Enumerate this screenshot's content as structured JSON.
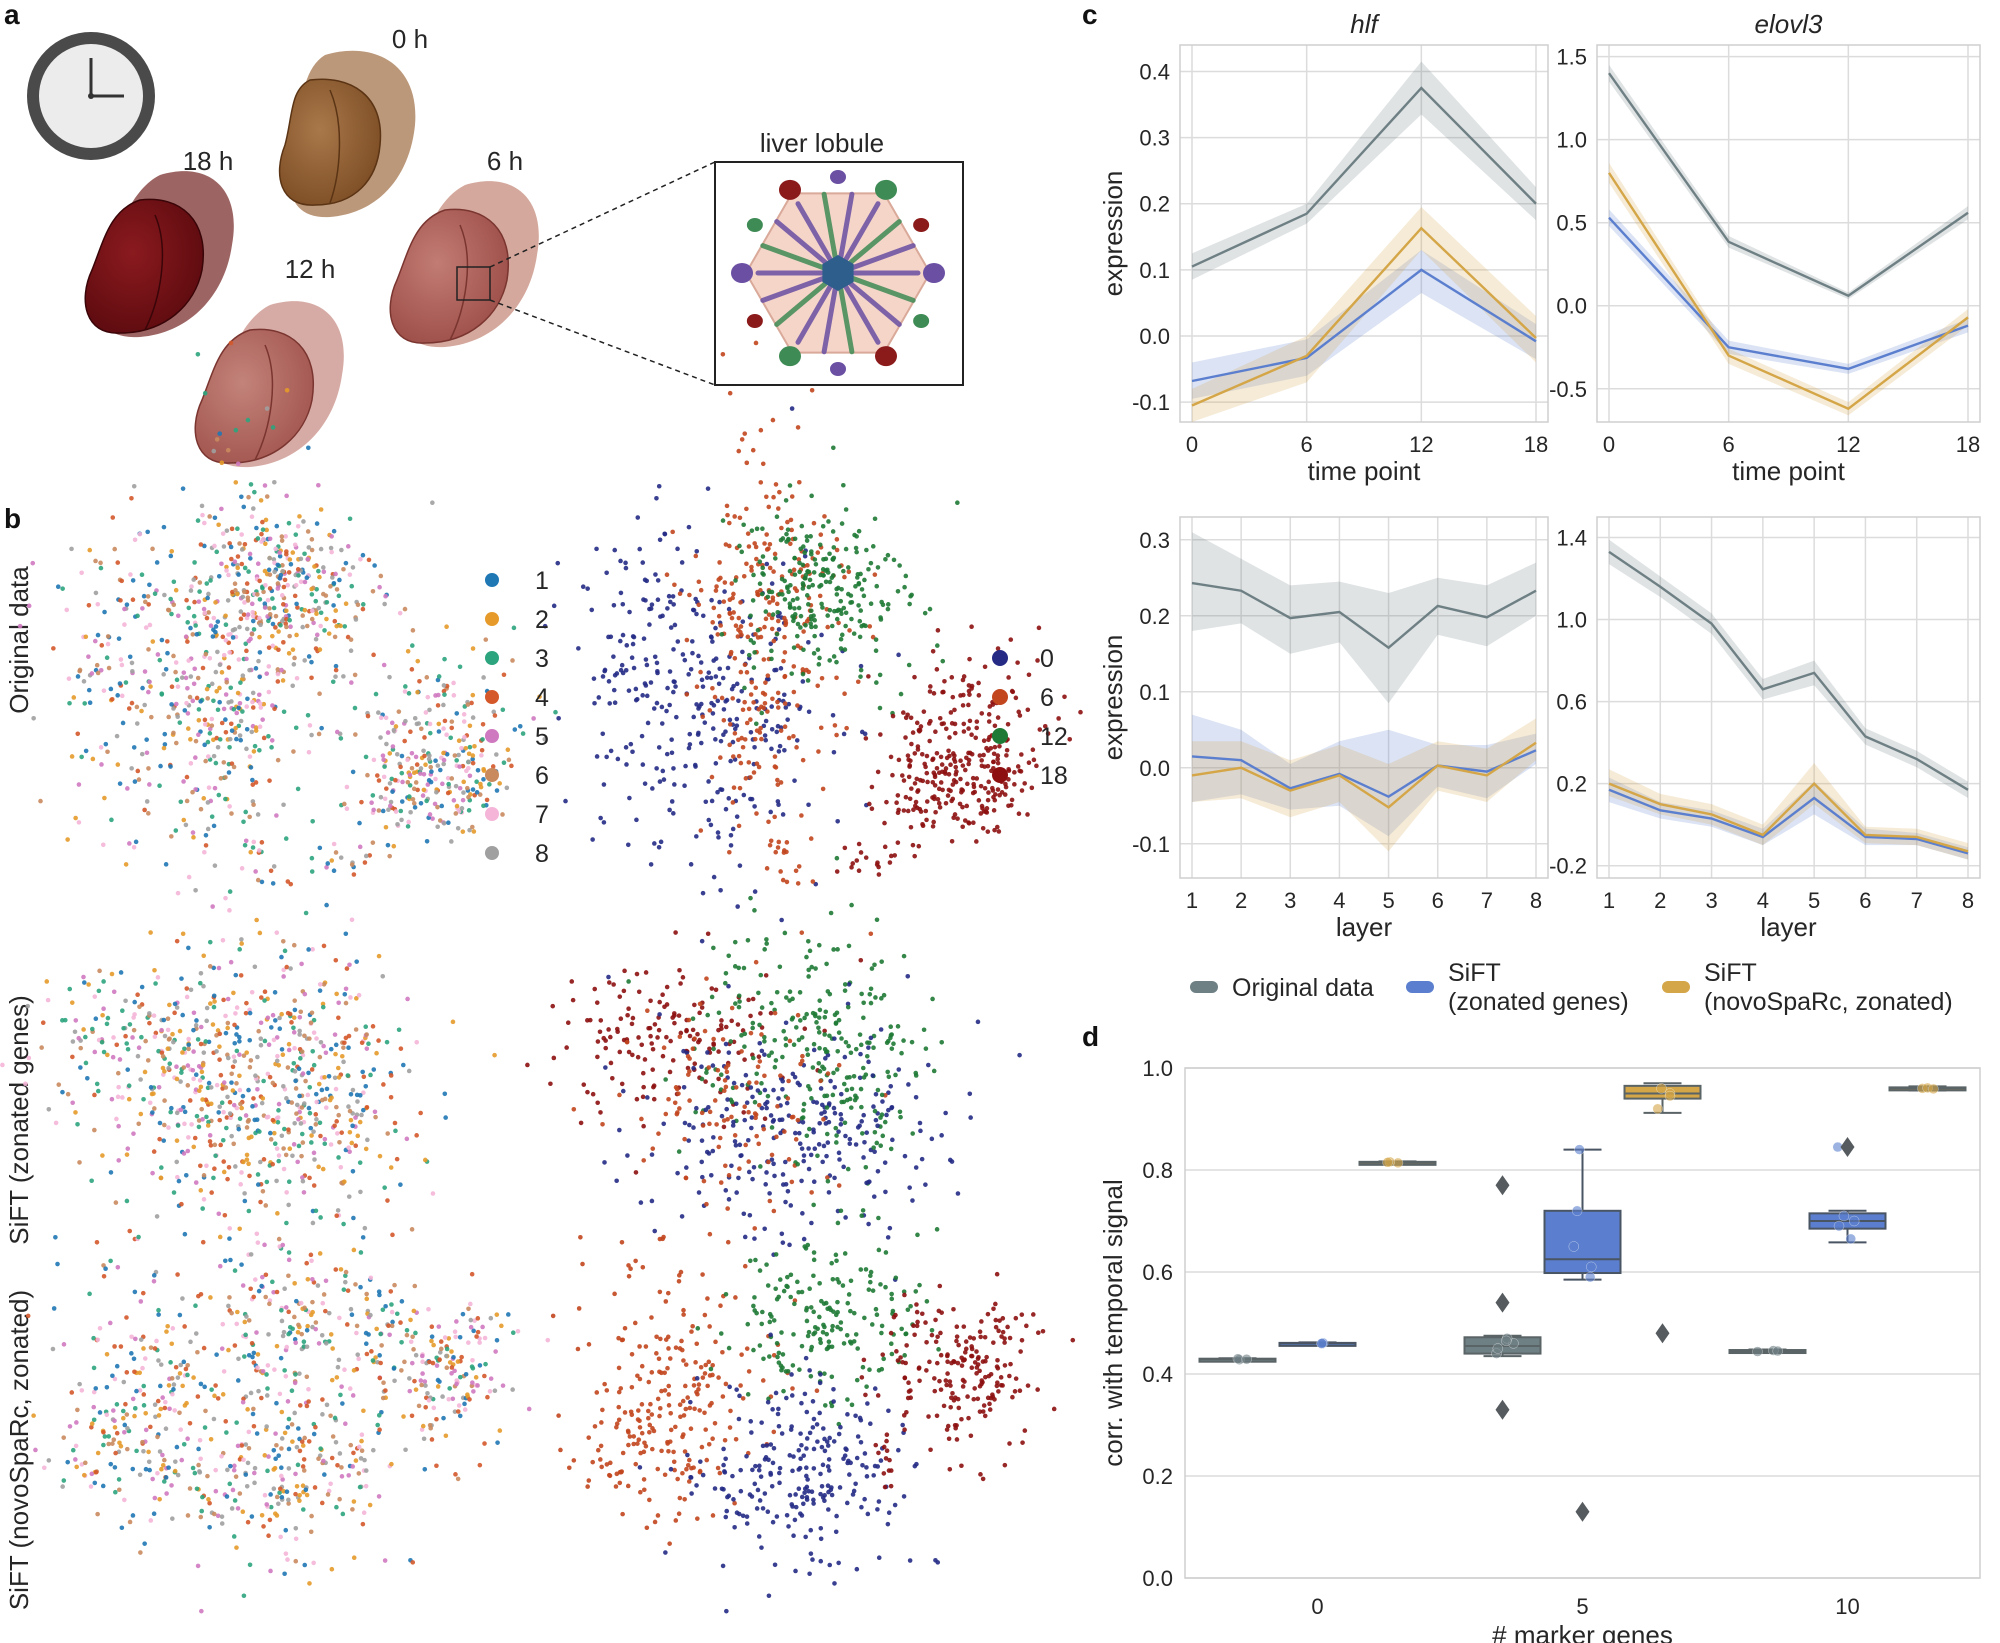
{
  "panel_labels": {
    "a": "a",
    "b": "b",
    "c": "c",
    "d": "d"
  },
  "panel_a": {
    "timepoints": [
      "0 h",
      "6 h",
      "12 h",
      "18 h"
    ],
    "inset_title": "liver lobule"
  },
  "panel_b": {
    "row_labels": [
      "Original data",
      "SiFT (zonated genes)",
      "SiFT (novoSpaRc, zonated)"
    ],
    "layer_legend": {
      "labels": [
        "1",
        "2",
        "3",
        "4",
        "5",
        "6",
        "7",
        "8"
      ],
      "colors": [
        "#1f77b4",
        "#e69a2a",
        "#2ca47d",
        "#d4582a",
        "#cf79c0",
        "#c98a5e",
        "#f4b5d8",
        "#a0a0a0"
      ]
    },
    "time_legend": {
      "labels": [
        "0",
        "6",
        "12",
        "18"
      ],
      "colors": [
        "#252b85",
        "#c2461e",
        "#1e7a35",
        "#8d0f0f"
      ]
    }
  },
  "legend_c": {
    "entries": [
      {
        "label_lines": [
          "Original data"
        ],
        "color": "#6f8085"
      },
      {
        "label_lines": [
          "SiFT",
          "(zonated genes)"
        ],
        "color": "#5b7fce"
      },
      {
        "label_lines": [
          "SiFT",
          "(novoSpaRc, zonated)"
        ],
        "color": "#d4a647"
      }
    ]
  },
  "chart_data": [
    {
      "id": "c1",
      "type": "line",
      "title": "hlf",
      "xlabel": "time point",
      "ylabel": "expression",
      "x": [
        0,
        6,
        12,
        18
      ],
      "xticks": [
        "0",
        "6",
        "12",
        "18"
      ],
      "ylim": [
        -0.13,
        0.44
      ],
      "yticks": [
        "-0.1",
        "0.0",
        "0.1",
        "0.2",
        "0.3",
        "0.4"
      ],
      "ytick_values": [
        -0.1,
        0,
        0.1,
        0.2,
        0.3,
        0.4
      ],
      "series": [
        {
          "name": "Original data",
          "color": "#6f8085",
          "values": [
            0.105,
            0.185,
            0.375,
            0.2
          ],
          "lower": [
            0.085,
            0.17,
            0.335,
            0.175
          ],
          "upper": [
            0.125,
            0.2,
            0.415,
            0.225
          ]
        },
        {
          "name": "SiFT (zonated genes)",
          "color": "#5b7fce",
          "values": [
            -0.068,
            -0.033,
            0.1,
            -0.008
          ],
          "lower": [
            -0.095,
            -0.06,
            0.065,
            -0.035
          ],
          "upper": [
            -0.04,
            -0.005,
            0.13,
            0.018
          ]
        },
        {
          "name": "SiFT (novoSpaRc, zonated)",
          "color": "#d4a647",
          "values": [
            -0.105,
            -0.03,
            0.163,
            -0.003
          ],
          "lower": [
            -0.13,
            -0.07,
            0.13,
            -0.04
          ],
          "upper": [
            -0.08,
            0.0,
            0.195,
            0.03
          ]
        }
      ]
    },
    {
      "id": "c2",
      "type": "line",
      "title": "elovl3",
      "xlabel": "time point",
      "ylabel": "",
      "x": [
        0,
        6,
        12,
        18
      ],
      "xticks": [
        "0",
        "6",
        "12",
        "18"
      ],
      "ylim": [
        -0.7,
        1.57
      ],
      "yticks": [
        "-0.5",
        "0.0",
        "0.5",
        "1.0",
        "1.5"
      ],
      "ytick_values": [
        -0.5,
        0,
        0.5,
        1.0,
        1.5
      ],
      "series": [
        {
          "name": "Original data",
          "color": "#6f8085",
          "values": [
            1.4,
            0.385,
            0.06,
            0.56
          ],
          "lower": [
            1.35,
            0.35,
            0.04,
            0.52
          ],
          "upper": [
            1.45,
            0.42,
            0.08,
            0.6
          ]
        },
        {
          "name": "SiFT (zonated genes)",
          "color": "#5b7fce",
          "values": [
            0.53,
            -0.25,
            -0.38,
            -0.12
          ],
          "lower": [
            0.48,
            -0.29,
            -0.41,
            -0.16
          ],
          "upper": [
            0.58,
            -0.21,
            -0.35,
            -0.08
          ]
        },
        {
          "name": "SiFT (novoSpaRc, zonated)",
          "color": "#d4a647",
          "values": [
            0.8,
            -0.3,
            -0.62,
            -0.07
          ],
          "lower": [
            0.74,
            -0.35,
            -0.66,
            -0.12
          ],
          "upper": [
            0.86,
            -0.26,
            -0.58,
            -0.02
          ]
        }
      ]
    },
    {
      "id": "c3",
      "type": "line",
      "title": "",
      "xlabel": "layer",
      "ylabel": "expression",
      "x": [
        1,
        2,
        3,
        4,
        5,
        6,
        7,
        8
      ],
      "xticks": [
        "1",
        "2",
        "3",
        "4",
        "5",
        "6",
        "7",
        "8"
      ],
      "ylim": [
        -0.145,
        0.33
      ],
      "yticks": [
        "-0.1",
        "0.0",
        "0.1",
        "0.2",
        "0.3"
      ],
      "ytick_values": [
        -0.1,
        0,
        0.1,
        0.2,
        0.3
      ],
      "series": [
        {
          "name": "Original data",
          "color": "#6f8085",
          "values": [
            0.243,
            0.233,
            0.197,
            0.205,
            0.158,
            0.213,
            0.198,
            0.233
          ],
          "lower": [
            0.18,
            0.19,
            0.15,
            0.165,
            0.085,
            0.175,
            0.16,
            0.2
          ],
          "upper": [
            0.31,
            0.275,
            0.24,
            0.245,
            0.23,
            0.25,
            0.24,
            0.27
          ]
        },
        {
          "name": "SiFT (zonated genes)",
          "color": "#5b7fce",
          "values": [
            0.015,
            0.01,
            -0.027,
            -0.008,
            -0.038,
            0.003,
            -0.005,
            0.023
          ],
          "lower": [
            -0.045,
            -0.035,
            -0.055,
            -0.05,
            -0.09,
            -0.025,
            -0.04,
            0.005
          ],
          "upper": [
            0.07,
            0.05,
            0.005,
            0.035,
            0.05,
            0.03,
            0.03,
            0.045
          ]
        },
        {
          "name": "SiFT (novoSpaRc, zonated)",
          "color": "#d4a647",
          "values": [
            -0.01,
            0.0,
            -0.03,
            -0.01,
            -0.052,
            0.003,
            -0.01,
            0.033
          ],
          "lower": [
            -0.045,
            -0.04,
            -0.065,
            -0.045,
            -0.11,
            -0.03,
            -0.045,
            0.01
          ],
          "upper": [
            0.035,
            0.035,
            0.01,
            0.03,
            0.005,
            0.035,
            0.025,
            0.065
          ]
        }
      ]
    },
    {
      "id": "c4",
      "type": "line",
      "title": "",
      "xlabel": "layer",
      "ylabel": "",
      "x": [
        1,
        2,
        3,
        4,
        5,
        6,
        7,
        8
      ],
      "xticks": [
        "1",
        "2",
        "3",
        "4",
        "5",
        "6",
        "7",
        "8"
      ],
      "ylim": [
        -0.26,
        1.5
      ],
      "yticks": [
        "-0.2",
        "0.2",
        "0.6",
        "1.0",
        "1.4"
      ],
      "ytick_values": [
        -0.2,
        0.2,
        0.6,
        1.0,
        1.4
      ],
      "series": [
        {
          "name": "Original data",
          "color": "#6f8085",
          "values": [
            1.33,
            1.16,
            0.98,
            0.66,
            0.74,
            0.43,
            0.32,
            0.17
          ],
          "lower": [
            1.27,
            1.11,
            0.93,
            0.61,
            0.68,
            0.39,
            0.28,
            0.13
          ],
          "upper": [
            1.39,
            1.21,
            1.03,
            0.71,
            0.8,
            0.47,
            0.36,
            0.21
          ]
        },
        {
          "name": "SiFT (zonated genes)",
          "color": "#5b7fce",
          "values": [
            0.17,
            0.07,
            0.03,
            -0.06,
            0.13,
            -0.06,
            -0.07,
            -0.14
          ],
          "lower": [
            0.11,
            0.03,
            -0.01,
            -0.1,
            0.05,
            -0.1,
            -0.1,
            -0.17
          ],
          "upper": [
            0.23,
            0.11,
            0.07,
            -0.02,
            0.21,
            -0.02,
            -0.04,
            -0.11
          ]
        },
        {
          "name": "SiFT (novoSpaRc, zonated)",
          "color": "#d4a647",
          "values": [
            0.2,
            0.1,
            0.05,
            -0.05,
            0.2,
            -0.05,
            -0.06,
            -0.13
          ],
          "lower": [
            0.14,
            0.05,
            0.0,
            -0.1,
            0.1,
            -0.09,
            -0.1,
            -0.17
          ],
          "upper": [
            0.27,
            0.15,
            0.1,
            0.0,
            0.3,
            -0.01,
            -0.02,
            -0.09
          ]
        }
      ]
    },
    {
      "id": "d",
      "type": "box",
      "xlabel": "# marker genes",
      "ylabel": "corr. with temporal signal",
      "categories": [
        "0",
        "5",
        "10"
      ],
      "ylim": [
        0.0,
        1.0
      ],
      "yticks": [
        "0.0",
        "0.2",
        "0.4",
        "0.6",
        "0.8",
        "1.0"
      ],
      "ytick_values": [
        0,
        0.2,
        0.4,
        0.6,
        0.8,
        1.0
      ],
      "series": [
        {
          "name": "Original data",
          "color": "#6f8085",
          "boxes": [
            {
              "min": 0.428,
              "q1": 0.428,
              "median": 0.429,
              "q3": 0.43,
              "max": 0.431,
              "outliers": [],
              "points": [
                0.428,
                0.43,
                0.429
              ]
            },
            {
              "min": 0.435,
              "q1": 0.44,
              "median": 0.455,
              "q3": 0.472,
              "max": 0.475,
              "outliers": [
                0.77,
                0.54,
                0.33
              ],
              "points": [
                0.44,
                0.45,
                0.46,
                0.47,
                0.465
              ]
            },
            {
              "min": 0.443,
              "q1": 0.443,
              "median": 0.445,
              "q3": 0.447,
              "max": 0.448,
              "outliers": [],
              "points": [
                0.444,
                0.446,
                0.445
              ]
            }
          ]
        },
        {
          "name": "SiFT (zonated genes)",
          "color": "#5b7fce",
          "boxes": [
            {
              "min": 0.458,
              "q1": 0.458,
              "median": 0.46,
              "q3": 0.461,
              "max": 0.462,
              "outliers": [],
              "points": [
                0.459,
                0.461,
                0.46
              ]
            },
            {
              "min": 0.585,
              "q1": 0.598,
              "median": 0.625,
              "q3": 0.72,
              "max": 0.84,
              "outliers": [
                0.13
              ],
              "points": [
                0.84,
                0.72,
                0.65,
                0.61,
                0.59
              ]
            },
            {
              "min": 0.658,
              "q1": 0.685,
              "median": 0.7,
              "q3": 0.715,
              "max": 0.72,
              "outliers": [
                0.845
              ],
              "points": [
                0.7,
                0.69,
                0.71,
                0.665,
                0.845
              ]
            }
          ]
        },
        {
          "name": "SiFT (novoSpaRc, zonated)",
          "color": "#d4a647",
          "boxes": [
            {
              "min": 0.813,
              "q1": 0.813,
              "median": 0.814,
              "q3": 0.816,
              "max": 0.817,
              "outliers": [],
              "points": [
                0.814,
                0.816,
                0.815
              ]
            },
            {
              "min": 0.912,
              "q1": 0.94,
              "median": 0.95,
              "q3": 0.965,
              "max": 0.97,
              "outliers": [
                0.48
              ],
              "points": [
                0.95,
                0.96,
                0.92,
                0.945
              ]
            },
            {
              "min": 0.956,
              "q1": 0.958,
              "median": 0.96,
              "q3": 0.962,
              "max": 0.964,
              "outliers": [],
              "points": [
                0.96,
                0.961,
                0.959
              ]
            }
          ]
        }
      ]
    }
  ]
}
